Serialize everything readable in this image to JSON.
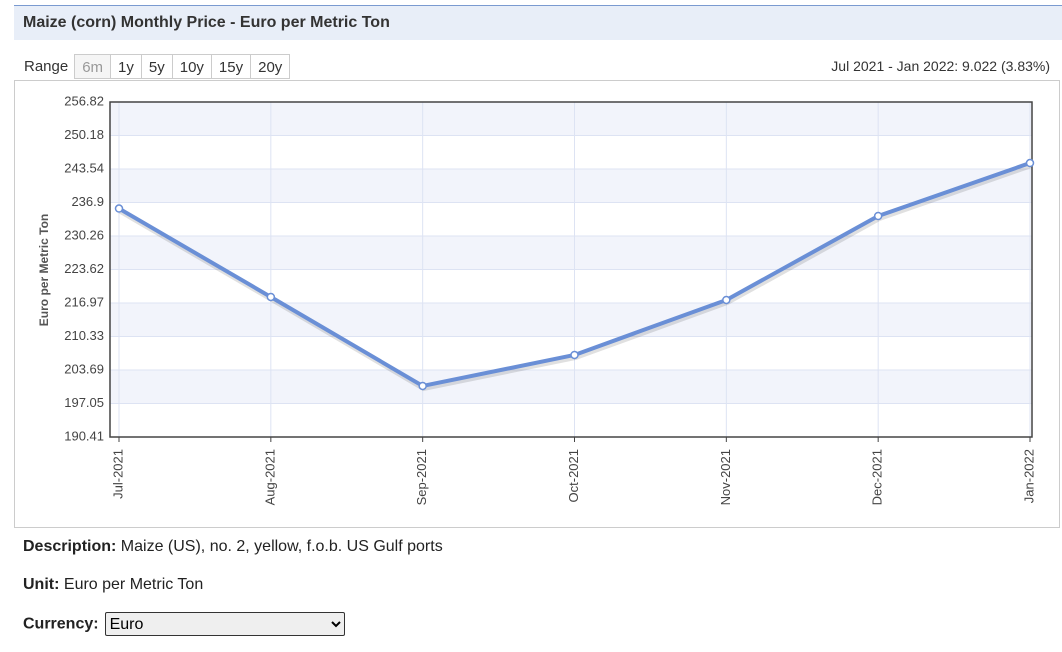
{
  "header": {
    "title": "Maize (corn) Monthly Price - Euro per Metric Ton"
  },
  "range": {
    "label": "Range",
    "buttons": [
      "6m",
      "1y",
      "5y",
      "10y",
      "15y",
      "20y"
    ]
  },
  "summary": "Jul 2021 - Jan 2022: 9.022 (3.83%)",
  "chart_data": {
    "type": "line",
    "y_label": "Euro per Metric Ton",
    "categories": [
      "Jul-2021",
      "Aug-2021",
      "Sep-2021",
      "Oct-2021",
      "Nov-2021",
      "Dec-2021",
      "Jan-2022"
    ],
    "values": [
      235.7,
      218.17,
      200.53,
      206.67,
      217.58,
      234.22,
      244.72
    ],
    "color": "#6a8fd6",
    "ylim": [
      190.41,
      256.82
    ],
    "yticks": [
      190.41,
      197.05,
      203.69,
      210.33,
      216.97,
      223.62,
      230.26,
      236.9,
      243.54,
      250.18,
      256.82
    ],
    "grid": true
  },
  "description": {
    "label": "Description:",
    "text": "Maize (US), no. 2, yellow, f.o.b. US Gulf ports"
  },
  "unit": {
    "label": "Unit:",
    "text": "Euro per Metric Ton"
  },
  "currency": {
    "label": "Currency:",
    "selected": "Euro"
  }
}
